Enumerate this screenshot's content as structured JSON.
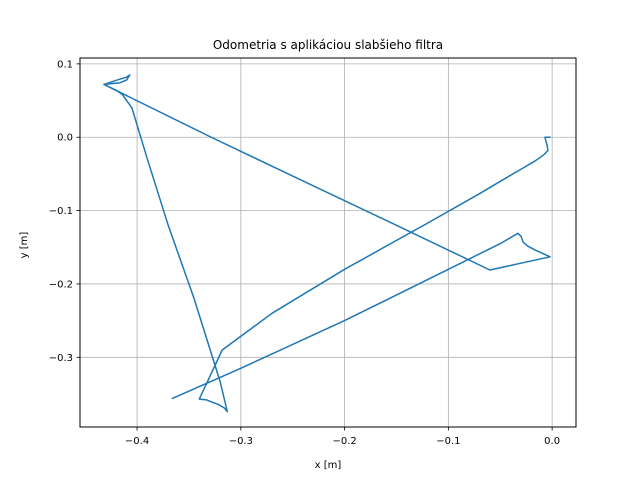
{
  "chart_data": {
    "type": "line",
    "title": "Odometria s aplikáciou slabšieho filtra",
    "xlabel": "x [m]",
    "ylabel": "y [m]",
    "xlim": [
      -0.455,
      0.023
    ],
    "ylim": [
      -0.395,
      0.108
    ],
    "xticks": [
      -0.4,
      -0.3,
      -0.2,
      -0.1,
      0.0
    ],
    "xtick_labels": [
      "−0.4",
      "−0.3",
      "−0.2",
      "−0.1",
      "0.0"
    ],
    "yticks": [
      0.1,
      0.0,
      -0.1,
      -0.2,
      -0.3
    ],
    "ytick_labels": [
      "0.1",
      "0.0",
      "−0.1",
      "−0.2",
      "−0.3"
    ],
    "grid": true,
    "colors": {
      "line": "#1f77b4",
      "grid": "#b0b0b0",
      "axes": "#000000"
    },
    "series": [
      {
        "x": [
          -0.002,
          -0.007,
          -0.005,
          -0.004,
          -0.008,
          -0.016,
          -0.028,
          -0.045,
          -0.07,
          -0.12,
          -0.2,
          -0.27,
          -0.318,
          -0.34,
          -0.333,
          -0.328,
          -0.322,
          -0.316,
          -0.313,
          -0.32,
          -0.345,
          -0.37,
          -0.39,
          -0.405,
          -0.414,
          -0.42,
          -0.432,
          -0.417,
          -0.41,
          -0.407,
          -0.41,
          -0.417,
          -0.432,
          -0.33,
          -0.25,
          -0.15,
          -0.06,
          -0.002,
          -0.016,
          -0.024,
          -0.028,
          -0.03,
          -0.033,
          -0.05,
          -0.1,
          -0.2,
          -0.3,
          -0.366
        ],
        "y": [
          0.0,
          0.0,
          -0.01,
          -0.018,
          -0.024,
          -0.032,
          -0.042,
          -0.056,
          -0.077,
          -0.117,
          -0.18,
          -0.24,
          -0.29,
          -0.357,
          -0.358,
          -0.361,
          -0.364,
          -0.369,
          -0.374,
          -0.333,
          -0.22,
          -0.12,
          -0.03,
          0.04,
          0.058,
          0.064,
          0.072,
          0.079,
          0.082,
          0.085,
          0.078,
          0.074,
          0.072,
          0.001,
          -0.053,
          -0.12,
          -0.181,
          -0.163,
          -0.154,
          -0.148,
          -0.143,
          -0.135,
          -0.131,
          -0.145,
          -0.18,
          -0.25,
          -0.315,
          -0.356
        ]
      }
    ]
  }
}
